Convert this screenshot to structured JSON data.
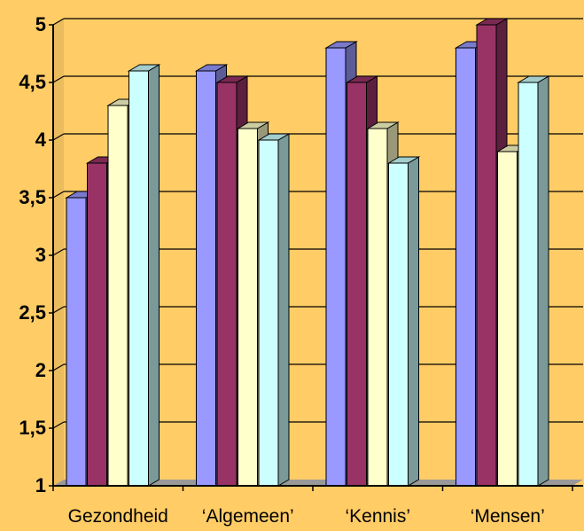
{
  "chart_data": {
    "type": "bar",
    "style": "3d-clustered-column",
    "categories": [
      "Gezondheid",
      "‘Algemeen’",
      "‘Kennis’",
      "‘Mensen’"
    ],
    "series": [
      {
        "color": "#9999FF",
        "values": [
          3.5,
          4.6,
          4.8,
          4.8
        ]
      },
      {
        "color": "#993366",
        "values": [
          3.8,
          4.5,
          4.5,
          5.0
        ]
      },
      {
        "color": "#FFFFCC",
        "values": [
          4.3,
          4.1,
          4.1,
          3.9
        ]
      },
      {
        "color": "#CCFFFF",
        "values": [
          4.6,
          4.0,
          3.8,
          4.5
        ]
      }
    ],
    "y_ticks": [
      "1",
      "1,5",
      "2",
      "2,5",
      "3",
      "3,5",
      "4",
      "4,5",
      "5"
    ],
    "ylim": [
      1,
      5
    ],
    "grid": true,
    "legend": "none"
  },
  "colors": {
    "background": "#FFCC66",
    "plot_wall": "#FFCC66",
    "gridline": "#000000",
    "axis": "#000000"
  }
}
